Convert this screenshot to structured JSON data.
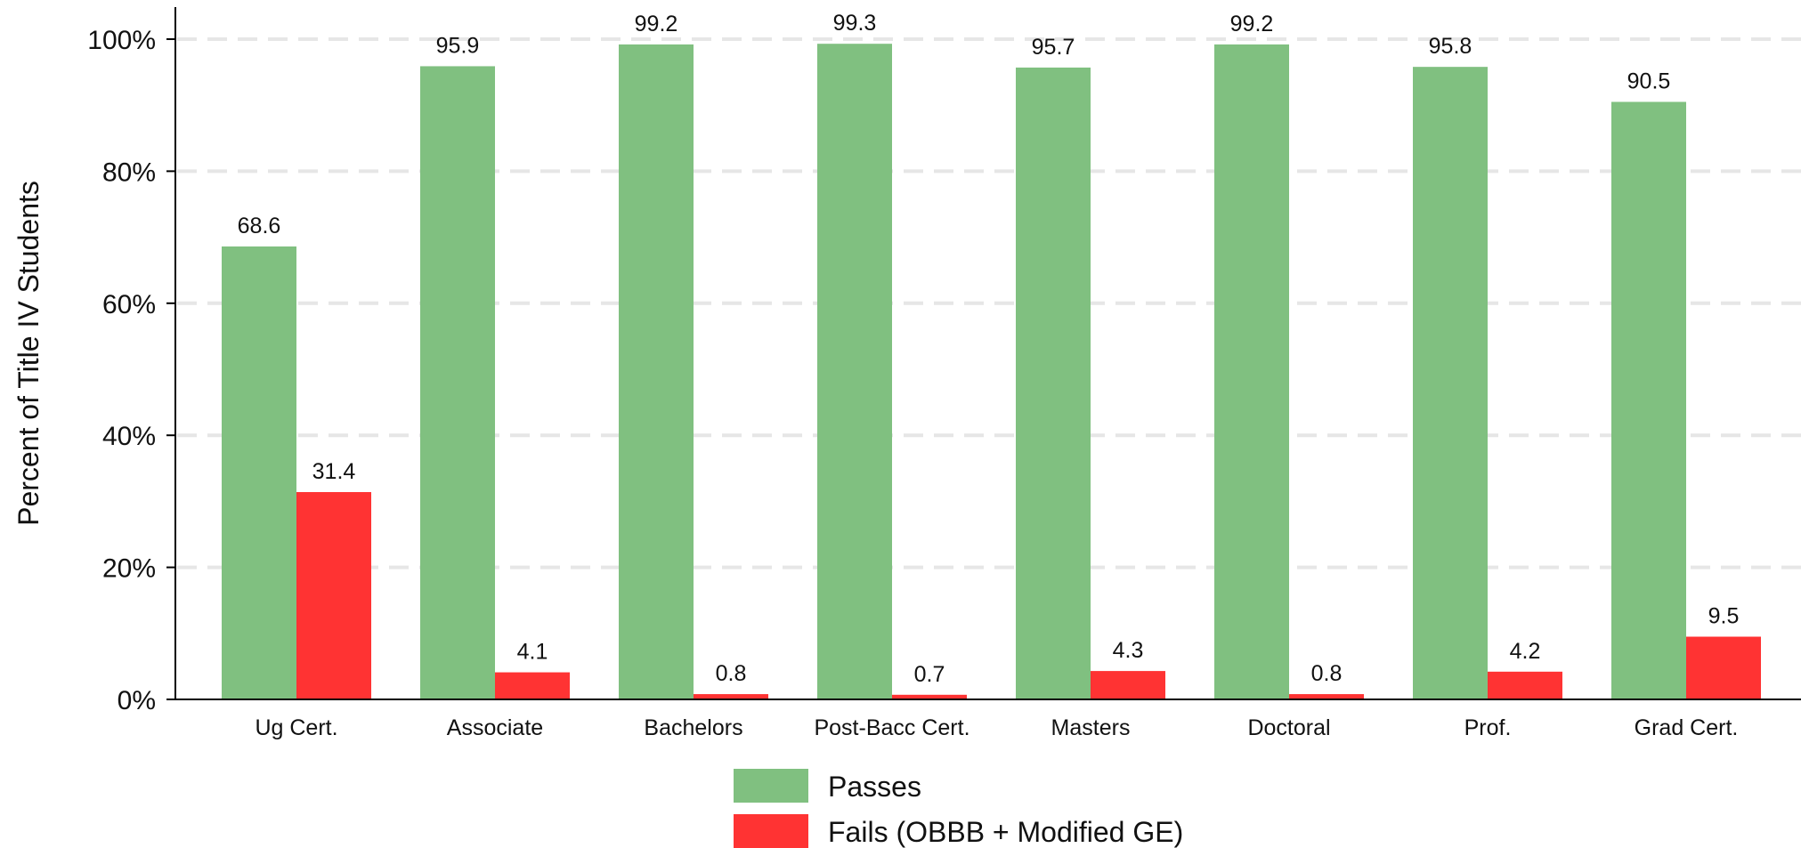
{
  "chart_data": {
    "type": "bar",
    "ylabel": "Percent of Title IV Students",
    "xlabel": "",
    "ylim": [
      0,
      100
    ],
    "yticks": [
      0,
      20,
      40,
      60,
      80,
      100
    ],
    "ytick_labels": [
      "0%",
      "20%",
      "40%",
      "60%",
      "80%",
      "100%"
    ],
    "grid": true,
    "legend_position": "bottom-center",
    "categories": [
      "Ug Cert.",
      "Associate",
      "Bachelors",
      "Post-Bacc Cert.",
      "Masters",
      "Doctoral",
      "Prof.",
      "Grad Cert."
    ],
    "series": [
      {
        "name": "Passes",
        "color": "#80c080",
        "values": [
          68.6,
          95.9,
          99.2,
          99.3,
          95.7,
          99.2,
          95.8,
          90.5
        ],
        "labels": [
          "68.6",
          "95.9",
          "99.2",
          "99.3",
          "95.7",
          "99.2",
          "95.8",
          "90.5"
        ]
      },
      {
        "name": "Fails (OBBB + Modified GE)",
        "color": "#ff3333",
        "values": [
          31.4,
          4.1,
          0.8,
          0.7,
          4.3,
          0.8,
          4.2,
          9.5
        ],
        "labels": [
          "31.4",
          "4.1",
          "0.8",
          "0.7",
          "4.3",
          "0.8",
          "4.2",
          "9.5"
        ]
      }
    ]
  }
}
